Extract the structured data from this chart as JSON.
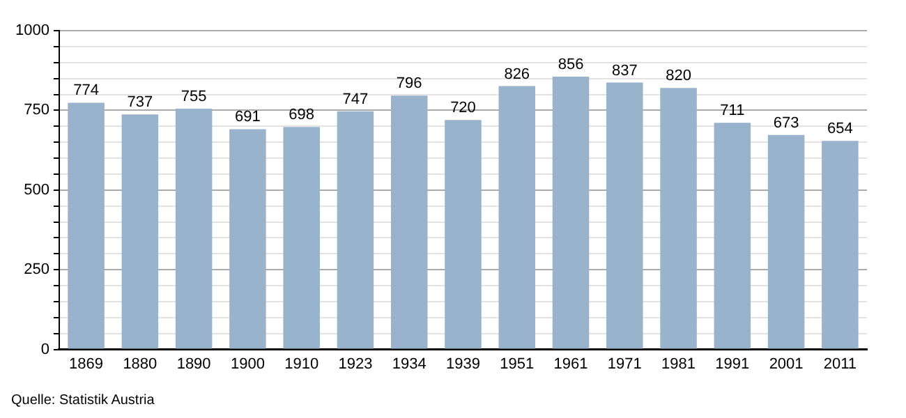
{
  "chart_data": {
    "type": "bar",
    "categories": [
      "1869",
      "1880",
      "1890",
      "1900",
      "1910",
      "1923",
      "1934",
      "1939",
      "1951",
      "1961",
      "1971",
      "1981",
      "1991",
      "2001",
      "2011"
    ],
    "values": [
      774,
      737,
      755,
      691,
      698,
      747,
      796,
      720,
      826,
      856,
      837,
      820,
      711,
      673,
      654
    ],
    "color": "#9ab3cd",
    "ylim": [
      0,
      1000
    ],
    "yticks": [
      0,
      {
        "value": 50,
        "label": null
      },
      {
        "value": 100,
        "label": null
      },
      {
        "value": 150,
        "label": null
      },
      {
        "value": 200,
        "label": null
      },
      250,
      {
        "value": 300,
        "label": null
      },
      {
        "value": 350,
        "label": null
      },
      {
        "value": 400,
        "label": null
      },
      {
        "value": 450,
        "label": null
      },
      500,
      {
        "value": 550,
        "label": null
      },
      {
        "value": 600,
        "label": null
      },
      {
        "value": 650,
        "label": null
      },
      {
        "value": 700,
        "label": null
      },
      750,
      {
        "value": 800,
        "label": null
      },
      {
        "value": 850,
        "label": null
      },
      {
        "value": 900,
        "label": null
      },
      {
        "value": 950,
        "label": null
      },
      1000
    ],
    "grid": "y",
    "data_labels": true,
    "annotations": [
      "Quelle: Statistik Austria"
    ]
  }
}
